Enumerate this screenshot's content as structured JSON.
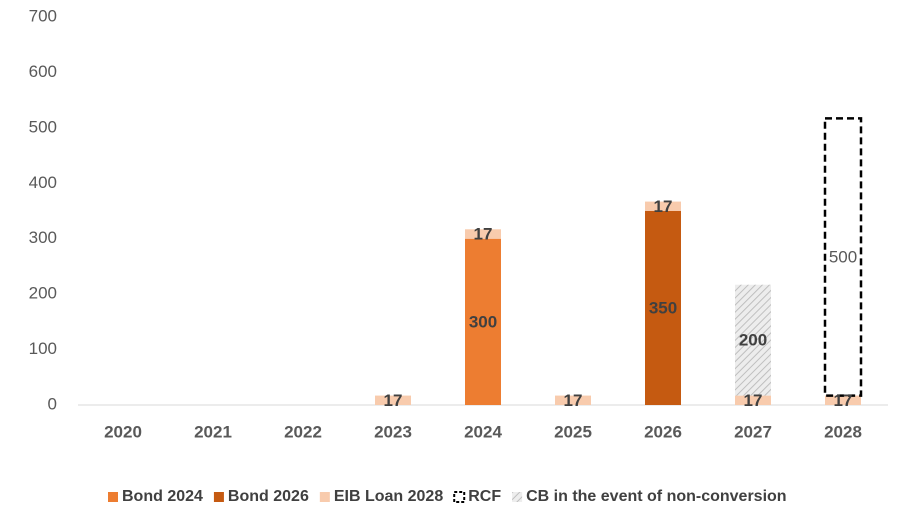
{
  "chart_data": {
    "type": "bar",
    "stacked": true,
    "categories": [
      "2020",
      "2021",
      "2022",
      "2023",
      "2024",
      "2025",
      "2026",
      "2027",
      "2028"
    ],
    "series": [
      {
        "name": "Bond 2024",
        "color": "#ed7d31",
        "pattern": "solid",
        "values": [
          null,
          null,
          null,
          null,
          300,
          null,
          null,
          null,
          null
        ]
      },
      {
        "name": "Bond 2026",
        "color": "#c55a11",
        "pattern": "solid",
        "values": [
          null,
          null,
          null,
          null,
          null,
          null,
          350,
          null,
          null
        ]
      },
      {
        "name": "EIB Loan 2028",
        "color": "#f8cbad",
        "pattern": "solid",
        "values": [
          null,
          null,
          null,
          17,
          17,
          17,
          17,
          17,
          17
        ]
      },
      {
        "name": "RCF",
        "color": "#000000",
        "pattern": "dashed-outline",
        "values": [
          null,
          null,
          null,
          null,
          null,
          null,
          null,
          null,
          500
        ]
      },
      {
        "name": "CB in the event of non-conversion",
        "color": "#bfbfbf",
        "pattern": "hatch",
        "values": [
          null,
          null,
          null,
          null,
          null,
          null,
          null,
          200,
          null
        ]
      }
    ],
    "ylim": [
      0,
      700
    ],
    "yticks": [
      0,
      100,
      200,
      300,
      400,
      500,
      600,
      700
    ],
    "grid": false,
    "legend": "bottom"
  }
}
